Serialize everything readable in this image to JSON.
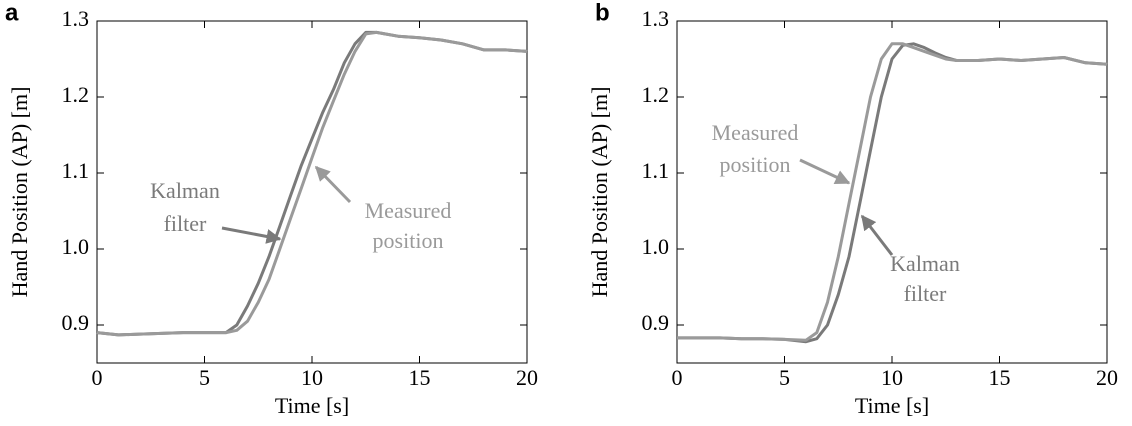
{
  "chart_data": [
    {
      "type": "line",
      "panel": "a",
      "xlabel": "Time [s]",
      "ylabel": "Hand Position (AP) [m]",
      "xlim": [
        0,
        20
      ],
      "ylim": [
        0.85,
        1.3
      ],
      "xticks": [
        0,
        5,
        10,
        15,
        20
      ],
      "yticks": [
        0.9,
        {
          "value": 1,
          "label": "1.0"
        },
        1.1,
        1.2,
        1.3
      ],
      "x": [
        0,
        1,
        2,
        3,
        4,
        5,
        6,
        6.5,
        7,
        7.5,
        8,
        8.5,
        9,
        9.5,
        10,
        10.5,
        11,
        11.5,
        12,
        12.5,
        13,
        14,
        15,
        16,
        17,
        18,
        19,
        20
      ],
      "series": [
        {
          "name": "Kalman filter",
          "color": "#7a7a7a",
          "values": [
            0.89,
            0.887,
            0.888,
            0.889,
            0.89,
            0.89,
            0.89,
            0.9,
            0.925,
            0.955,
            0.99,
            1.03,
            1.07,
            1.11,
            1.145,
            1.18,
            1.21,
            1.245,
            1.27,
            1.285,
            1.285,
            1.28,
            1.278,
            1.275,
            1.27,
            1.262,
            1.262,
            1.26
          ]
        },
        {
          "name": "Measured position",
          "color": "#9a9a9a",
          "values": [
            0.89,
            0.887,
            0.888,
            0.889,
            0.89,
            0.89,
            0.89,
            0.893,
            0.905,
            0.93,
            0.96,
            1.0,
            1.04,
            1.08,
            1.12,
            1.16,
            1.195,
            1.23,
            1.26,
            1.283,
            1.285,
            1.28,
            1.278,
            1.275,
            1.27,
            1.262,
            1.262,
            1.26
          ]
        }
      ],
      "annotations": [
        {
          "text": [
            "Kalman",
            "filter"
          ],
          "color": "#7a7a7a"
        },
        {
          "text": [
            "Measured",
            "position"
          ],
          "color": "#9a9a9a"
        }
      ]
    },
    {
      "type": "line",
      "panel": "b",
      "xlabel": "Time [s]",
      "ylabel": "Hand Position (AP) [m]",
      "xlim": [
        0,
        20
      ],
      "ylim": [
        0.85,
        1.3
      ],
      "xticks": [
        0,
        5,
        10,
        15,
        20
      ],
      "yticks": [
        0.9,
        {
          "value": 1,
          "label": "1.0"
        },
        1.1,
        1.2,
        1.3
      ],
      "x": [
        0,
        1,
        2,
        3,
        4,
        5,
        6,
        6.5,
        7,
        7.5,
        8,
        8.5,
        9,
        9.5,
        10,
        10.5,
        11,
        11.5,
        12,
        12.5,
        13,
        14,
        15,
        16,
        17,
        18,
        19,
        20
      ],
      "series": [
        {
          "name": "Kalman filter",
          "color": "#7a7a7a",
          "values": [
            0.883,
            0.883,
            0.883,
            0.882,
            0.882,
            0.881,
            0.878,
            0.882,
            0.9,
            0.94,
            0.99,
            1.06,
            1.13,
            1.2,
            1.25,
            1.268,
            1.27,
            1.265,
            1.258,
            1.252,
            1.248,
            1.248,
            1.25,
            1.248,
            1.25,
            1.252,
            1.245,
            1.243
          ]
        },
        {
          "name": "Measured position",
          "color": "#9a9a9a",
          "values": [
            0.883,
            0.883,
            0.883,
            0.882,
            0.882,
            0.881,
            0.88,
            0.89,
            0.93,
            0.99,
            1.06,
            1.13,
            1.2,
            1.25,
            1.27,
            1.27,
            1.265,
            1.26,
            1.255,
            1.25,
            1.248,
            1.248,
            1.25,
            1.248,
            1.25,
            1.252,
            1.245,
            1.243
          ]
        }
      ],
      "annotations": [
        {
          "text": [
            "Measured",
            "position"
          ],
          "color": "#9a9a9a"
        },
        {
          "text": [
            "Kalman",
            "filter"
          ],
          "color": "#7a7a7a"
        }
      ]
    }
  ]
}
